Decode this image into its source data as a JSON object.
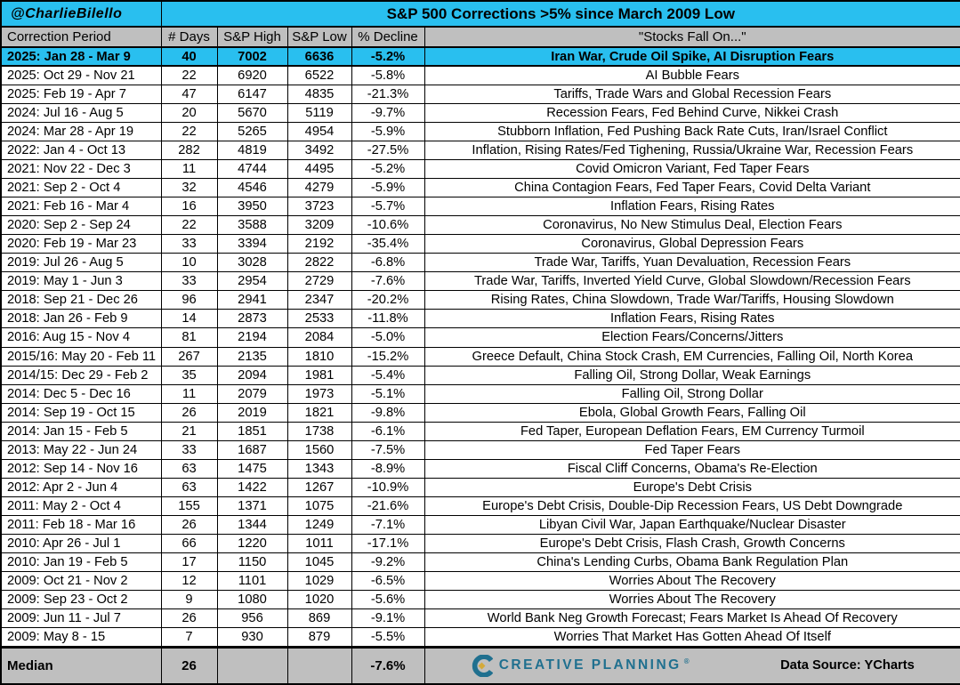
{
  "colors": {
    "cyan": "#29bfef",
    "gray": "#bfbfbf",
    "teal": "#20708f",
    "gold": "#d4aa3a"
  },
  "header": {
    "handle": "@CharlieBilello",
    "title": "S&P 500 Corrections >5% since March 2009 Low"
  },
  "chart_data": {
    "type": "table",
    "title": "S&P 500 Corrections >5% since March 2009 Low",
    "columns": [
      "Correction Period",
      "# Days",
      "S&P High",
      "S&P Low",
      "% Decline",
      "\"Stocks Fall On...\""
    ],
    "rows": [
      {
        "period": "2025: Jan 28 - Mar 9",
        "days": "40",
        "high": "7002",
        "low": "6636",
        "decline": "-5.2%",
        "reason": "Iran War, Crude Oil Spike, AI Disruption Fears",
        "highlight": true
      },
      {
        "period": "2025: Oct 29 - Nov 21",
        "days": "22",
        "high": "6920",
        "low": "6522",
        "decline": "-5.8%",
        "reason": "AI Bubble Fears",
        "highlight": false
      },
      {
        "period": "2025: Feb 19 - Apr 7",
        "days": "47",
        "high": "6147",
        "low": "4835",
        "decline": "-21.3%",
        "reason": "Tariffs, Trade Wars and Global Recession Fears",
        "highlight": false
      },
      {
        "period": "2024: Jul 16 - Aug 5",
        "days": "20",
        "high": "5670",
        "low": "5119",
        "decline": "-9.7%",
        "reason": "Recession Fears, Fed Behind Curve, Nikkei Crash",
        "highlight": false
      },
      {
        "period": "2024: Mar 28 - Apr 19",
        "days": "22",
        "high": "5265",
        "low": "4954",
        "decline": "-5.9%",
        "reason": "Stubborn Inflation, Fed Pushing Back Rate Cuts, Iran/Israel Conflict",
        "highlight": false
      },
      {
        "period": "2022: Jan 4 - Oct 13",
        "days": "282",
        "high": "4819",
        "low": "3492",
        "decline": "-27.5%",
        "reason": "Inflation, Rising Rates/Fed Tighening, Russia/Ukraine War, Recession Fears",
        "highlight": false
      },
      {
        "period": "2021: Nov 22 - Dec 3",
        "days": "11",
        "high": "4744",
        "low": "4495",
        "decline": "-5.2%",
        "reason": "Covid Omicron Variant, Fed Taper Fears",
        "highlight": false
      },
      {
        "period": "2021: Sep 2 - Oct 4",
        "days": "32",
        "high": "4546",
        "low": "4279",
        "decline": "-5.9%",
        "reason": "China Contagion Fears, Fed Taper Fears, Covid Delta Variant",
        "highlight": false
      },
      {
        "period": "2021: Feb 16 - Mar 4",
        "days": "16",
        "high": "3950",
        "low": "3723",
        "decline": "-5.7%",
        "reason": "Inflation Fears, Rising Rates",
        "highlight": false
      },
      {
        "period": "2020: Sep 2 - Sep 24",
        "days": "22",
        "high": "3588",
        "low": "3209",
        "decline": "-10.6%",
        "reason": "Coronavirus, No New Stimulus Deal, Election Fears",
        "highlight": false
      },
      {
        "period": "2020: Feb 19 - Mar 23",
        "days": "33",
        "high": "3394",
        "low": "2192",
        "decline": "-35.4%",
        "reason": "Coronavirus, Global Depression Fears",
        "highlight": false
      },
      {
        "period": "2019: Jul 26 - Aug 5",
        "days": "10",
        "high": "3028",
        "low": "2822",
        "decline": "-6.8%",
        "reason": "Trade War, Tariffs, Yuan Devaluation, Recession Fears",
        "highlight": false
      },
      {
        "period": "2019: May 1 - Jun 3",
        "days": "33",
        "high": "2954",
        "low": "2729",
        "decline": "-7.6%",
        "reason": "Trade War, Tariffs, Inverted Yield Curve, Global Slowdown/Recession Fears",
        "highlight": false
      },
      {
        "period": "2018: Sep 21 - Dec 26",
        "days": "96",
        "high": "2941",
        "low": "2347",
        "decline": "-20.2%",
        "reason": "Rising Rates, China Slowdown, Trade War/Tariffs, Housing Slowdown",
        "highlight": false
      },
      {
        "period": "2018: Jan 26 - Feb 9",
        "days": "14",
        "high": "2873",
        "low": "2533",
        "decline": "-11.8%",
        "reason": "Inflation Fears, Rising Rates",
        "highlight": false
      },
      {
        "period": "2016: Aug 15 - Nov 4",
        "days": "81",
        "high": "2194",
        "low": "2084",
        "decline": "-5.0%",
        "reason": "Election Fears/Concerns/Jitters",
        "highlight": false
      },
      {
        "period": "2015/16: May 20 - Feb 11",
        "days": "267",
        "high": "2135",
        "low": "1810",
        "decline": "-15.2%",
        "reason": "Greece Default, China Stock Crash, EM Currencies, Falling Oil, North Korea",
        "highlight": false
      },
      {
        "period": "2014/15: Dec 29 - Feb 2",
        "days": "35",
        "high": "2094",
        "low": "1981",
        "decline": "-5.4%",
        "reason": "Falling Oil, Strong Dollar, Weak Earnings",
        "highlight": false
      },
      {
        "period": "2014: Dec 5 - Dec 16",
        "days": "11",
        "high": "2079",
        "low": "1973",
        "decline": "-5.1%",
        "reason": "Falling Oil, Strong Dollar",
        "highlight": false
      },
      {
        "period": "2014: Sep 19 - Oct 15",
        "days": "26",
        "high": "2019",
        "low": "1821",
        "decline": "-9.8%",
        "reason": "Ebola, Global Growth Fears, Falling Oil",
        "highlight": false
      },
      {
        "period": "2014: Jan 15 - Feb 5",
        "days": "21",
        "high": "1851",
        "low": "1738",
        "decline": "-6.1%",
        "reason": "Fed Taper, European Deflation Fears, EM Currency Turmoil",
        "highlight": false
      },
      {
        "period": "2013: May 22 - Jun 24",
        "days": "33",
        "high": "1687",
        "low": "1560",
        "decline": "-7.5%",
        "reason": "Fed Taper Fears",
        "highlight": false
      },
      {
        "period": "2012: Sep 14 - Nov 16",
        "days": "63",
        "high": "1475",
        "low": "1343",
        "decline": "-8.9%",
        "reason": "Fiscal Cliff Concerns, Obama's Re-Election",
        "highlight": false
      },
      {
        "period": "2012: Apr 2 - Jun 4",
        "days": "63",
        "high": "1422",
        "low": "1267",
        "decline": "-10.9%",
        "reason": "Europe's Debt Crisis",
        "highlight": false
      },
      {
        "period": "2011: May 2 - Oct 4",
        "days": "155",
        "high": "1371",
        "low": "1075",
        "decline": "-21.6%",
        "reason": "Europe's Debt Crisis, Double-Dip Recession Fears, US Debt Downgrade",
        "highlight": false
      },
      {
        "period": "2011: Feb 18 - Mar 16",
        "days": "26",
        "high": "1344",
        "low": "1249",
        "decline": "-7.1%",
        "reason": "Libyan Civil War, Japan Earthquake/Nuclear Disaster",
        "highlight": false
      },
      {
        "period": "2010: Apr 26 - Jul 1",
        "days": "66",
        "high": "1220",
        "low": "1011",
        "decline": "-17.1%",
        "reason": "Europe's Debt Crisis, Flash Crash, Growth Concerns",
        "highlight": false
      },
      {
        "period": "2010: Jan 19 - Feb 5",
        "days": "17",
        "high": "1150",
        "low": "1045",
        "decline": "-9.2%",
        "reason": "China's Lending Curbs, Obama Bank Regulation Plan",
        "highlight": false
      },
      {
        "period": "2009: Oct 21 - Nov 2",
        "days": "12",
        "high": "1101",
        "low": "1029",
        "decline": "-6.5%",
        "reason": "Worries About The Recovery",
        "highlight": false
      },
      {
        "period": "2009: Sep 23 - Oct 2",
        "days": "9",
        "high": "1080",
        "low": "1020",
        "decline": "-5.6%",
        "reason": "Worries About The Recovery",
        "highlight": false
      },
      {
        "period": "2009: Jun 11 - Jul 7",
        "days": "26",
        "high": "956",
        "low": "869",
        "decline": "-9.1%",
        "reason": "World Bank Neg Growth Forecast; Fears Market Is Ahead Of Recovery",
        "highlight": false
      },
      {
        "period": "2009: May 8 - 15",
        "days": "7",
        "high": "930",
        "low": "879",
        "decline": "-5.5%",
        "reason": "Worries That Market Has Gotten Ahead Of Itself",
        "highlight": false
      }
    ],
    "median": {
      "label": "Median",
      "days": "26",
      "high": "",
      "low": "",
      "decline": "-7.6%"
    }
  },
  "footer": {
    "logo_text": "CREATIVE PLANNING",
    "logo_mark": "®",
    "data_source": "Data Source: YCharts"
  }
}
